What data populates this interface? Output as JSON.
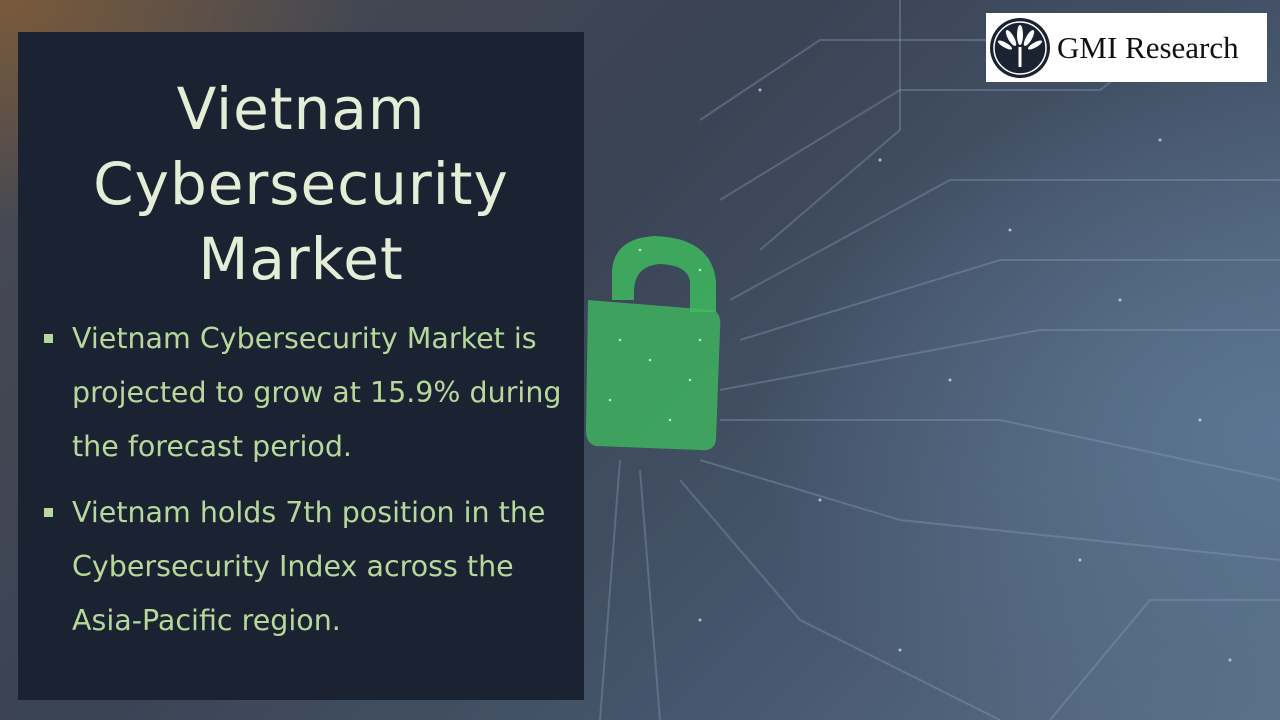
{
  "title": "Vietnam Cybersecurity Market",
  "title_lines": [
    "Vietnam",
    "Cybersecurity",
    "Market"
  ],
  "bullets": [
    "Vietnam Cybersecurity Market is projected to grow at 15.9% during the forecast period.",
    "Vietnam holds 7th position in the Cybersecurity Index across the Asia-Pacific region."
  ],
  "logo": {
    "text": "GMI Research",
    "icon": "palm-leaf-emblem-icon"
  },
  "background": {
    "image": "circuit-board-with-green-padlock",
    "icon": "padlock-icon"
  },
  "colors": {
    "panel": "#1b2232",
    "title": "#e4eed6",
    "bullet_text": "#b6d99b",
    "padlock": "#3fbf5f"
  }
}
